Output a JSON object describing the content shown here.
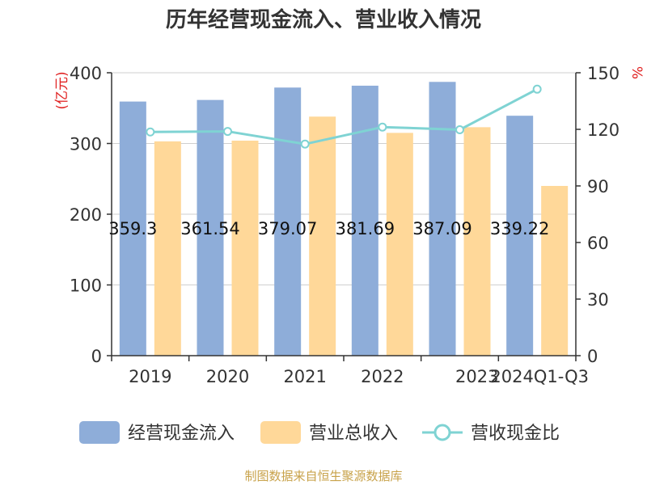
{
  "chart_data": {
    "type": "bar",
    "title": "历年经营现金流入、营业收入情况",
    "categories": [
      "2019",
      "2020",
      "2021",
      "2022",
      "2023",
      "2024Q1-Q3"
    ],
    "y_left": {
      "unit": "(亿元)",
      "ylim": [
        0,
        400
      ],
      "ticks": [
        "0",
        "100",
        "200",
        "300",
        "400"
      ]
    },
    "y_right": {
      "unit": "%",
      "ylim": [
        0,
        150
      ],
      "ticks": [
        "0",
        "30",
        "60",
        "90",
        "120",
        "150"
      ]
    },
    "series": [
      {
        "name": "经营现金流入",
        "kind": "bar",
        "axis": "left",
        "color": "#8eadd9",
        "values": [
          359.3,
          361.54,
          379.07,
          381.69,
          387.09,
          339.22
        ],
        "labels": [
          "359.3",
          "361.54",
          "379.07",
          "381.69",
          "387.09",
          "339.22"
        ]
      },
      {
        "name": "营业总收入",
        "kind": "bar",
        "axis": "left",
        "color": "#ffd899",
        "values": [
          303,
          304,
          338,
          315,
          323,
          240
        ]
      },
      {
        "name": "营收现金比",
        "kind": "line",
        "axis": "right",
        "color": "#7fd3d3",
        "values": [
          118.6,
          118.9,
          112.2,
          121.2,
          119.8,
          141.3
        ]
      }
    ],
    "grid": true,
    "legend_position": "bottom"
  },
  "source": "制图数据来自恒生聚源数据库"
}
